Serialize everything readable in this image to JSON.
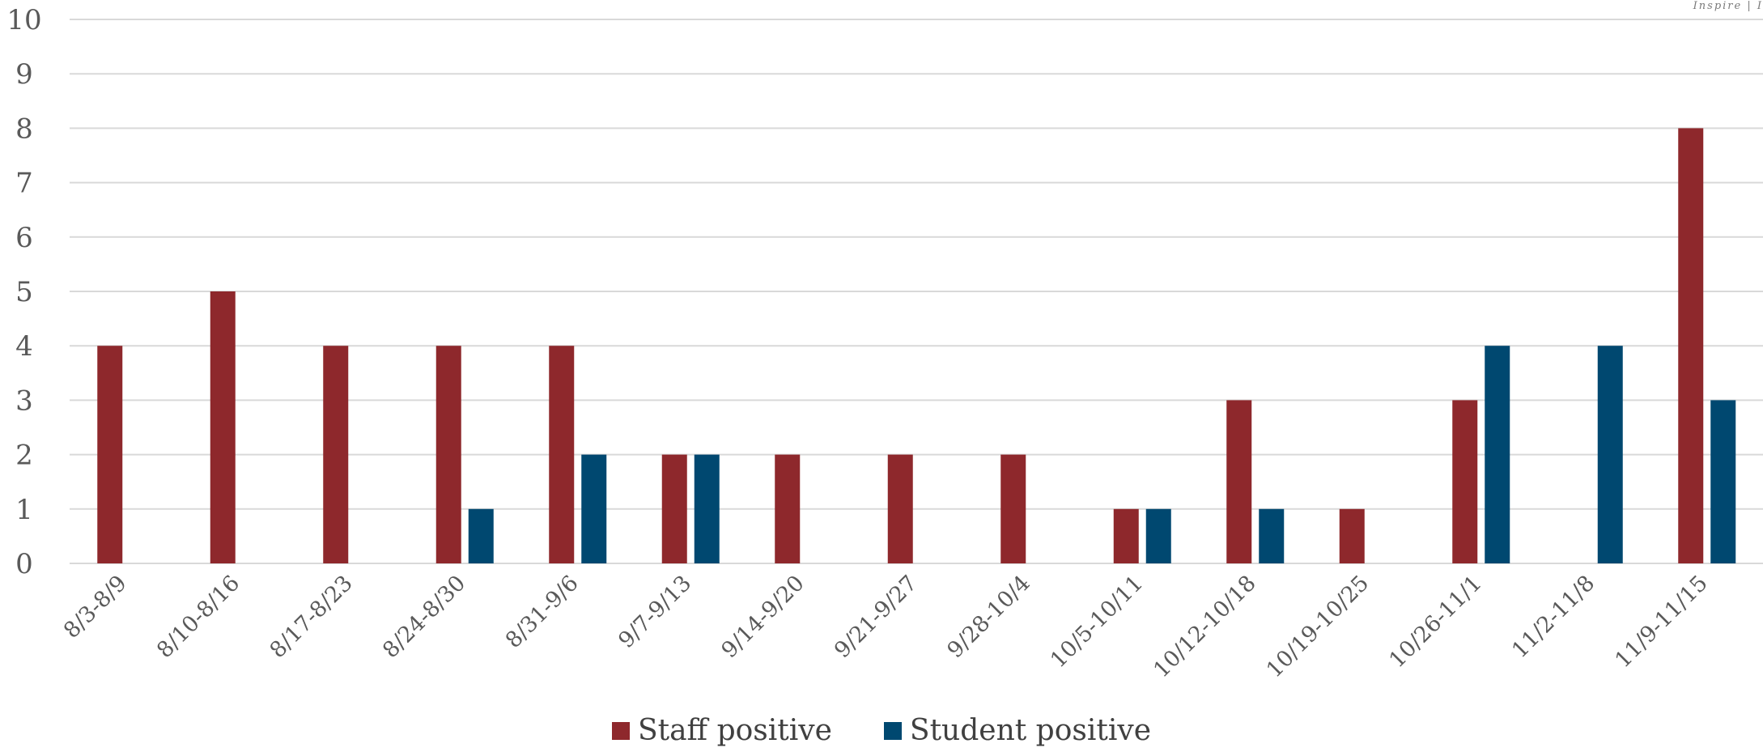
{
  "watermark": "Inspire | I",
  "colors": {
    "staff": "#8e282c",
    "student": "#004870",
    "grid": "#d9d9d9",
    "axis_text": "#595959"
  },
  "chart_data": {
    "type": "bar",
    "categories": [
      "8/3-8/9",
      "8/10-8/16",
      "8/17-8/23",
      "8/24-8/30",
      "8/31-9/6",
      "9/7-9/13",
      "9/14-9/20",
      "9/21-9/27",
      "9/28-10/4",
      "10/5-10/11",
      "10/12-10/18",
      "10/19-10/25",
      "10/26-11/1",
      "11/2-11/8",
      "11/9-11/15"
    ],
    "series": [
      {
        "name": "Staff positive",
        "values": [
          4,
          5,
          4,
          4,
          4,
          2,
          2,
          2,
          2,
          1,
          3,
          1,
          3,
          0,
          8
        ]
      },
      {
        "name": "Student positive",
        "values": [
          0,
          0,
          0,
          1,
          2,
          2,
          0,
          0,
          0,
          1,
          1,
          0,
          4,
          4,
          3
        ]
      }
    ],
    "ylim": [
      0,
      10
    ],
    "yticks": [
      0,
      1,
      2,
      3,
      4,
      5,
      6,
      7,
      8,
      9,
      10
    ],
    "grid": true,
    "legend": "bottom-center"
  }
}
